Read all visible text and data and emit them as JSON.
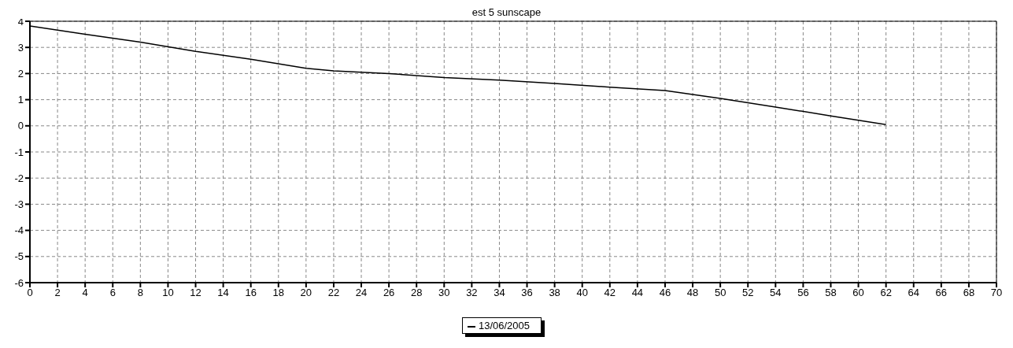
{
  "chart_data": {
    "type": "line",
    "title": "est 5 sunscape",
    "x": [
      0,
      4,
      8,
      12,
      16,
      20,
      22,
      26,
      30,
      34,
      38,
      42,
      46,
      50,
      54,
      58,
      62
    ],
    "series": [
      {
        "name": "13/06/2005",
        "color": "#000000",
        "values": [
          3.82,
          3.5,
          3.2,
          2.85,
          2.55,
          2.2,
          2.1,
          2.0,
          1.85,
          1.75,
          1.62,
          1.48,
          1.35,
          1.05,
          0.72,
          0.38,
          0.05
        ]
      }
    ],
    "xlim": [
      0,
      70
    ],
    "xticks": [
      0,
      2,
      4,
      6,
      8,
      10,
      12,
      14,
      16,
      18,
      20,
      22,
      24,
      26,
      28,
      30,
      32,
      34,
      36,
      38,
      40,
      42,
      44,
      46,
      48,
      50,
      52,
      54,
      56,
      58,
      60,
      62,
      64,
      66,
      68,
      70
    ],
    "ylim": [
      -6,
      4
    ],
    "yticks": [
      -6,
      -5,
      -4,
      -3,
      -2,
      -1,
      0,
      1,
      2,
      3,
      4
    ],
    "grid": true,
    "legend": "bottom",
    "marker": "none",
    "line_style": "solid"
  }
}
